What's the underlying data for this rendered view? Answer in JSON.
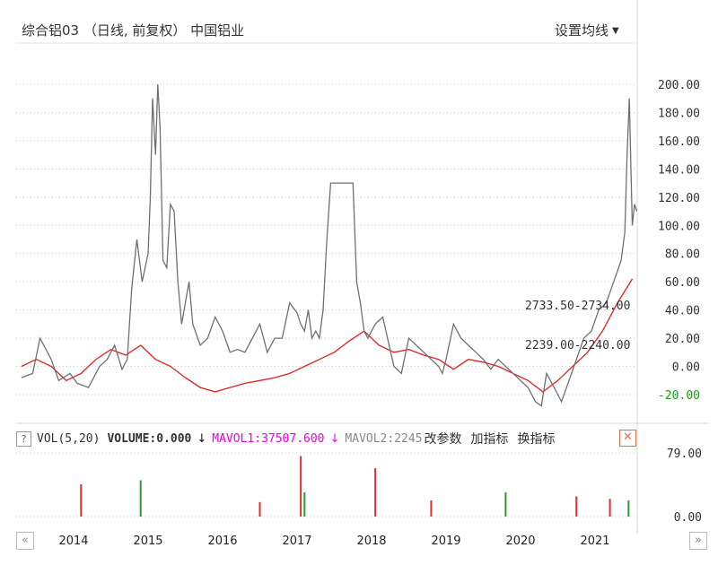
{
  "header": {
    "title": "综合铝03 （日线, 前复权） 中国铝业",
    "ma_setting": "设置均线"
  },
  "colors": {
    "price_line": "#707070",
    "ma_line": "#e02020",
    "vol_up": "#e03030",
    "vol_down": "#2a9a2a",
    "mavol1": "#ee00ee",
    "negative_tick": "#1a9a1a"
  },
  "chart_data": [
    {
      "type": "line",
      "title": "综合铝03 （日线, 前复权） 中国铝业",
      "ylim": [
        -20,
        200
      ],
      "y_ticks": [
        "200.00",
        "180.00",
        "160.00",
        "140.00",
        "120.00",
        "100.00",
        "80.00",
        "60.00",
        "40.00",
        "20.00",
        "0.00",
        "-20.00"
      ],
      "x_ticks": [
        "2014",
        "2015",
        "2016",
        "2017",
        "2018",
        "2019",
        "2020",
        "2021"
      ],
      "grid": true,
      "series": [
        {
          "x": [
            2013.3,
            2013.45,
            2013.55,
            2013.7,
            2013.8,
            2013.95,
            2014.05,
            2014.2,
            2014.35,
            2014.45,
            2014.55,
            2014.65,
            2014.72,
            2014.78,
            2014.85,
            2014.92,
            2015.0,
            2015.03,
            2015.06,
            2015.1,
            2015.13,
            2015.16,
            2015.2,
            2015.25,
            2015.3,
            2015.35,
            2015.4,
            2015.45,
            2015.5,
            2015.55,
            2015.6,
            2015.7,
            2015.8,
            2015.9,
            2016.0,
            2016.1,
            2016.2,
            2016.3,
            2016.4,
            2016.5,
            2016.6,
            2016.7,
            2016.8,
            2016.9,
            2017.0,
            2017.05,
            2017.1,
            2017.15,
            2017.2,
            2017.25,
            2017.3,
            2017.35,
            2017.4,
            2017.45,
            2017.55,
            2017.65,
            2017.75,
            2017.8,
            2017.85,
            2017.9,
            2017.95,
            2018.05,
            2018.15,
            2018.3,
            2018.4,
            2018.5,
            2018.6,
            2018.7,
            2018.8,
            2018.9,
            2018.95,
            2019.0,
            2019.1,
            2019.2,
            2019.3,
            2019.4,
            2019.5,
            2019.6,
            2019.7,
            2019.8,
            2019.9,
            2020.0,
            2020.1,
            2020.2,
            2020.28,
            2020.35,
            2020.45,
            2020.55,
            2020.65,
            2020.75,
            2020.85,
            2020.95,
            2021.05,
            2021.15,
            2021.25,
            2021.35,
            2021.4,
            2021.43,
            2021.46,
            2021.48,
            2021.5,
            2021.53,
            2021.56
          ],
          "y": [
            -8,
            -5,
            20,
            5,
            -10,
            -5,
            -12,
            -15,
            0,
            5,
            15,
            -2,
            5,
            55,
            90,
            60,
            80,
            120,
            190,
            150,
            200,
            170,
            75,
            70,
            115,
            110,
            60,
            30,
            45,
            60,
            30,
            15,
            20,
            35,
            25,
            10,
            12,
            10,
            20,
            30,
            10,
            20,
            20,
            45,
            38,
            30,
            25,
            40,
            20,
            25,
            20,
            40,
            90,
            130,
            130,
            130,
            130,
            60,
            45,
            25,
            20,
            30,
            35,
            0,
            -5,
            20,
            15,
            10,
            5,
            0,
            -5,
            5,
            30,
            20,
            15,
            10,
            5,
            -2,
            5,
            0,
            -5,
            -10,
            -15,
            -25,
            -28,
            -5,
            -15,
            -25,
            -10,
            5,
            20,
            25,
            40,
            45,
            60,
            75,
            95,
            150,
            190,
            145,
            100,
            115,
            110
          ]
        },
        {
          "x": [
            2013.3,
            2013.5,
            2013.7,
            2013.9,
            2014.1,
            2014.3,
            2014.5,
            2014.7,
            2014.9,
            2015.1,
            2015.3,
            2015.5,
            2015.7,
            2015.9,
            2016.1,
            2016.3,
            2016.5,
            2016.7,
            2016.9,
            2017.1,
            2017.3,
            2017.5,
            2017.7,
            2017.9,
            2018.1,
            2018.3,
            2018.5,
            2018.7,
            2018.9,
            2019.1,
            2019.3,
            2019.5,
            2019.7,
            2019.9,
            2020.1,
            2020.3,
            2020.5,
            2020.7,
            2020.9,
            2021.1,
            2021.3,
            2021.5
          ],
          "y": [
            0,
            5,
            0,
            -10,
            -5,
            5,
            12,
            8,
            15,
            5,
            0,
            -8,
            -15,
            -18,
            -15,
            -12,
            -10,
            -8,
            -5,
            0,
            5,
            10,
            18,
            25,
            15,
            10,
            12,
            8,
            5,
            -2,
            5,
            3,
            0,
            -5,
            -10,
            -18,
            -10,
            0,
            10,
            25,
            45,
            62
          ]
        }
      ],
      "annotations": [
        "2733.50-2734.00",
        "2239.00-2240.00"
      ]
    },
    {
      "type": "bar",
      "title": "VOL(5,20)",
      "ylim": [
        0,
        79
      ],
      "y_ticks": [
        "79.00",
        "0.00"
      ],
      "x": [
        2014.1,
        2014.9,
        2016.5,
        2017.05,
        2017.1,
        2018.05,
        2018.8,
        2019.8,
        2020.75,
        2021.2,
        2021.45
      ],
      "values": [
        40,
        45,
        18,
        75,
        30,
        60,
        20,
        30,
        25,
        22,
        20
      ],
      "legend": {
        "vol": "VOL(5,20)",
        "volume": "VOLUME:0.000",
        "mavol1": "MAVOL1:37507.600",
        "mavol2": "MAVOL2:2245"
      }
    }
  ],
  "vol_panel": {
    "help": "?",
    "down_arrow": "↓",
    "tools": [
      "改参数",
      "加指标",
      "换指标"
    ],
    "close": "✕"
  },
  "nav": {
    "left": "«",
    "right": "»"
  }
}
